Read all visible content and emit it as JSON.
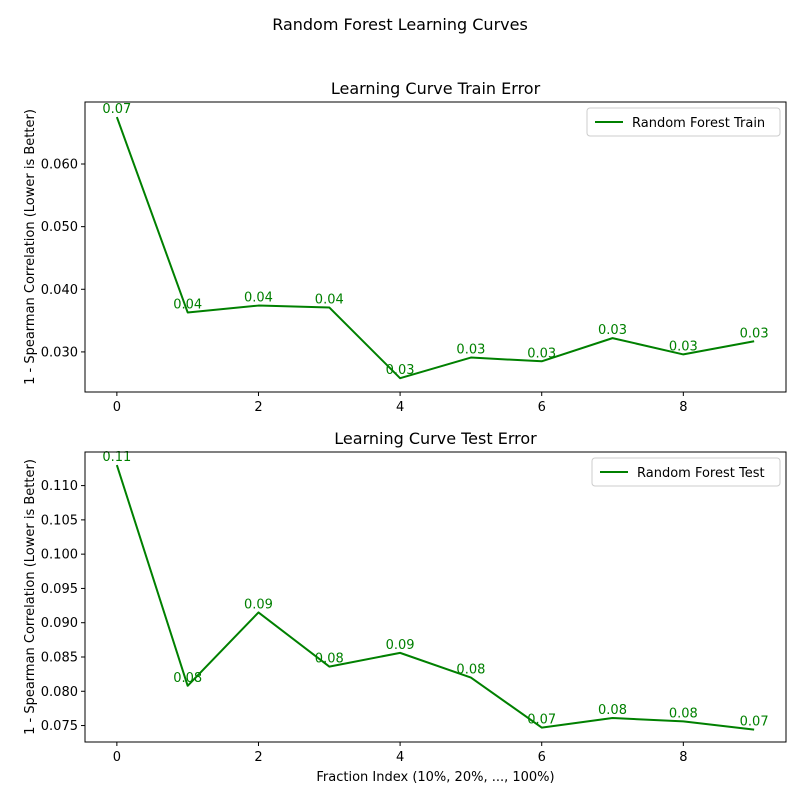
{
  "figure": {
    "suptitle": "Random Forest Learning Curves"
  },
  "chart_data": [
    {
      "type": "line",
      "title": "Learning Curve Train Error",
      "xlabel": "",
      "ylabel": "1 - Spearman Correlation (Lower is Better)",
      "x": [
        0,
        1,
        2,
        3,
        4,
        5,
        6,
        7,
        8,
        9
      ],
      "xticks": [
        "0",
        "2",
        "4",
        "6",
        "8"
      ],
      "xlim": [
        -0.45,
        9.45
      ],
      "ylim": [
        0.0236,
        0.0699
      ],
      "yticks": [
        "0.030",
        "0.040",
        "0.050",
        "0.060"
      ],
      "series": [
        {
          "name": "Random Forest Train",
          "color": "#008000",
          "values": [
            0.0675,
            0.0363,
            0.0374,
            0.0371,
            0.0258,
            0.0291,
            0.0285,
            0.0322,
            0.0296,
            0.0317
          ],
          "labels": [
            "0.07",
            "0.04",
            "0.04",
            "0.04",
            "0.03",
            "0.03",
            "0.03",
            "0.03",
            "0.03",
            "0.03"
          ]
        }
      ],
      "legend": "top-right",
      "grid": false
    },
    {
      "type": "line",
      "title": "Learning Curve Test Error",
      "xlabel": "Fraction Index (10%, 20%, ..., 100%)",
      "ylabel": "1 - Spearman Correlation (Lower is Better)",
      "x": [
        0,
        1,
        2,
        3,
        4,
        5,
        6,
        7,
        8,
        9
      ],
      "xticks": [
        "0",
        "2",
        "4",
        "6",
        "8"
      ],
      "xlim": [
        -0.45,
        9.45
      ],
      "ylim": [
        0.0726,
        0.1149
      ],
      "yticks": [
        "0.075",
        "0.080",
        "0.085",
        "0.090",
        "0.095",
        "0.100",
        "0.105",
        "0.110"
      ],
      "series": [
        {
          "name": "Random Forest Test",
          "color": "#008000",
          "values": [
            0.113,
            0.0808,
            0.0915,
            0.0836,
            0.0856,
            0.082,
            0.0747,
            0.0761,
            0.0756,
            0.0744
          ],
          "labels": [
            "0.11",
            "0.08",
            "0.09",
            "0.08",
            "0.09",
            "0.08",
            "0.07",
            "0.08",
            "0.08",
            "0.07"
          ]
        }
      ],
      "legend": "top-right",
      "grid": false
    }
  ]
}
